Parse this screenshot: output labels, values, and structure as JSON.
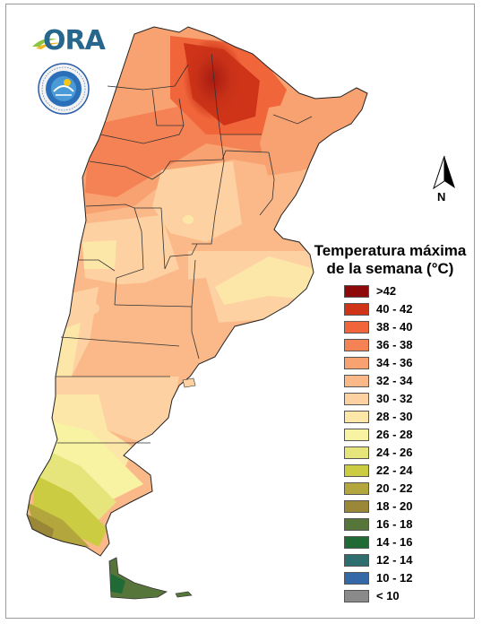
{
  "logos": {
    "ora_text": "ORA",
    "seal_text": "SERVICIO METEOROLÓGICO NACIONAL · ARGENTINA"
  },
  "north_arrow": {
    "label": "N"
  },
  "legend": {
    "title_line1": "Temperatura máxima",
    "title_line2": "de la semana (°C)",
    "items": [
      {
        "label": ">42",
        "color": "#8e0a0a"
      },
      {
        "label": "40 - 42",
        "color": "#cf3418"
      },
      {
        "label": "38 - 40",
        "color": "#f0653a"
      },
      {
        "label": "36 - 38",
        "color": "#f58254"
      },
      {
        "label": "34 - 36",
        "color": "#f8a271"
      },
      {
        "label": "32 - 34",
        "color": "#fbb98a"
      },
      {
        "label": "30 - 32",
        "color": "#fdd1a2"
      },
      {
        "label": "28 - 30",
        "color": "#fde7a8"
      },
      {
        "label": "26 - 28",
        "color": "#f7f3a2"
      },
      {
        "label": "24 - 26",
        "color": "#e5e57c"
      },
      {
        "label": "22 - 24",
        "color": "#cccc42"
      },
      {
        "label": "20 - 22",
        "color": "#b3a63c"
      },
      {
        "label": "18 - 20",
        "color": "#9a8838"
      },
      {
        "label": "16 - 18",
        "color": "#56753a"
      },
      {
        "label": "14 - 16",
        "color": "#1f6a35"
      },
      {
        "label": "12 - 14",
        "color": "#2f6e6e"
      },
      {
        "label": "10 - 12",
        "color": "#3568a6"
      },
      {
        "label": "< 10",
        "color": "#8a8a8a"
      }
    ]
  }
}
